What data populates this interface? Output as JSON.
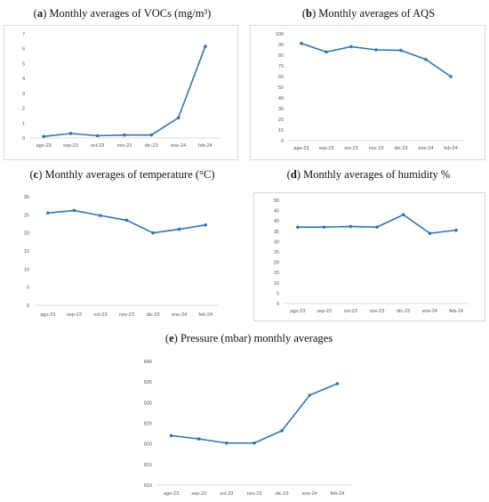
{
  "accent": "#2e75b6",
  "chart_data": [
    {
      "id": "a",
      "type": "line",
      "title_letter": "a",
      "title_text": " Monthly averages of VOCs (mg/m³)",
      "categories": [
        "ago-23",
        "sep-23",
        "oct-23",
        "nov-23",
        "dic-23",
        "ene-24",
        "feb-24"
      ],
      "values": [
        0.1,
        0.3,
        0.15,
        0.2,
        0.2,
        1.35,
        6.15
      ],
      "ylim": [
        0,
        7
      ],
      "yticks": [
        0,
        1,
        2,
        3,
        4,
        5,
        6,
        7
      ],
      "grid": false
    },
    {
      "id": "b",
      "type": "line",
      "title_letter": "b",
      "title_text": " Monthly averages of AQS",
      "categories": [
        "ago-23",
        "sep-23",
        "oct-23",
        "nov-23",
        "dic-23",
        "ene-24",
        "feb-24"
      ],
      "values": [
        91,
        83,
        88,
        85,
        84.5,
        76,
        60
      ],
      "ylim": [
        0,
        100
      ],
      "yticks": [
        0,
        10,
        20,
        30,
        40,
        50,
        60,
        70,
        80,
        90,
        100
      ],
      "grid": false
    },
    {
      "id": "c",
      "type": "line",
      "title_letter": "c",
      "title_text": " Monthly averages of temperature (°C)",
      "categories": [
        "ago-23",
        "sep-23",
        "oct-23",
        "nov-23",
        "dic-23",
        "ene-24",
        "feb-24"
      ],
      "values": [
        25.5,
        26.2,
        24.8,
        23.5,
        20,
        21,
        22.2
      ],
      "ylim": [
        0,
        30
      ],
      "yticks": [
        0,
        5,
        10,
        15,
        20,
        25,
        30
      ],
      "grid": false
    },
    {
      "id": "d",
      "type": "line",
      "title_letter": "d",
      "title_text": " Monthly averages of humidity %",
      "categories": [
        "ago-23",
        "sep-23",
        "oct-23",
        "nov-23",
        "dic-23",
        "ene-24",
        "feb-24"
      ],
      "values": [
        37,
        37,
        37.3,
        37,
        43,
        34,
        35.5
      ],
      "ylim": [
        0,
        50
      ],
      "yticks": [
        0,
        5,
        10,
        15,
        20,
        25,
        30,
        35,
        40,
        45,
        50
      ],
      "grid": false
    },
    {
      "id": "e",
      "type": "line",
      "title_letter": "e",
      "title_text": " Pressure (mbar) monthly averages",
      "categories": [
        "ago-23",
        "sep-23",
        "oct-23",
        "nov-23",
        "dic-23",
        "ene-24",
        "feb-24"
      ],
      "values": [
        822,
        821.2,
        820.2,
        820.2,
        823.2,
        831.8,
        834.6
      ],
      "ylim": [
        810,
        840
      ],
      "yticks": [
        810,
        815,
        820,
        825,
        830,
        835,
        840
      ],
      "grid": false
    }
  ]
}
